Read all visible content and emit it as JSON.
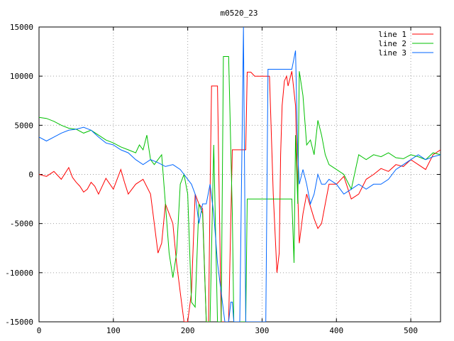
{
  "chart_data": {
    "type": "line",
    "title": "m0520_23",
    "xlabel": "",
    "ylabel": "",
    "xlim": [
      0,
      540
    ],
    "ylim": [
      -15000,
      15000
    ],
    "xticks": [
      0,
      100,
      200,
      300,
      400,
      500
    ],
    "xtick_labels": [
      "0",
      "100",
      "200",
      "300",
      "400",
      "500"
    ],
    "yticks": [
      -15000,
      -10000,
      -5000,
      0,
      5000,
      10000,
      15000
    ],
    "ytick_labels": [
      "-15000",
      "-10000",
      "-5000",
      "0",
      "5000",
      "10000",
      "15000"
    ],
    "grid": true,
    "legend_position": "top-right",
    "series": [
      {
        "name": "line 1",
        "color": "#ff0000",
        "x": [
          0,
          10,
          20,
          30,
          40,
          45,
          50,
          55,
          60,
          65,
          70,
          75,
          80,
          90,
          100,
          110,
          115,
          120,
          130,
          140,
          150,
          155,
          160,
          165,
          170,
          180,
          185,
          190,
          195,
          200,
          205,
          210,
          215,
          220,
          225,
          228,
          230,
          232,
          235,
          240,
          245,
          248,
          250,
          255,
          260,
          262,
          265,
          270,
          275,
          278,
          280,
          285,
          290,
          295,
          300,
          305,
          310,
          315,
          320,
          323,
          325,
          327,
          330,
          333,
          335,
          340,
          345,
          348,
          350,
          355,
          360,
          370,
          375,
          380,
          385,
          390,
          400,
          410,
          420,
          430,
          440,
          450,
          460,
          470,
          480,
          490,
          500,
          510,
          520,
          530,
          540
        ],
        "y": [
          0,
          -200,
          300,
          -500,
          700,
          -300,
          -800,
          -1200,
          -1800,
          -1500,
          -800,
          -1200,
          -2000,
          -400,
          -1500,
          500,
          -800,
          -2000,
          -1000,
          -500,
          -2000,
          -5000,
          -8000,
          -7000,
          -3000,
          -5000,
          -9000,
          -12000,
          -15000,
          -15000,
          -12000,
          -2000,
          -3000,
          -3500,
          -15000,
          -15000,
          -2000,
          9000,
          9000,
          9000,
          -15000,
          -15000,
          -15000,
          -15000,
          2500,
          2500,
          2500,
          2500,
          2500,
          2500,
          10400,
          10400,
          10000,
          10000,
          10000,
          10000,
          10000,
          -2000,
          -10000,
          -8000,
          2000,
          7000,
          9500,
          10000,
          9000,
          10500,
          7000,
          -2000,
          -7000,
          -4000,
          -2000,
          -4500,
          -5500,
          -5000,
          -3000,
          -1000,
          -1000,
          -200,
          -2500,
          -2000,
          -500,
          0,
          600,
          300,
          1000,
          800,
          1500,
          1000,
          500,
          2000,
          2500
        ]
      },
      {
        "name": "line 2",
        "color": "#00c000",
        "x": [
          0,
          10,
          20,
          30,
          40,
          50,
          60,
          70,
          80,
          90,
          100,
          110,
          120,
          130,
          135,
          140,
          145,
          150,
          155,
          160,
          165,
          170,
          175,
          180,
          185,
          190,
          195,
          200,
          205,
          210,
          215,
          220,
          225,
          230,
          235,
          240,
          245,
          248,
          250,
          255,
          260,
          262,
          265,
          270,
          275,
          278,
          280,
          283,
          285,
          290,
          295,
          300,
          305,
          310,
          320,
          330,
          335,
          340,
          343,
          345,
          348,
          350,
          355,
          360,
          365,
          370,
          375,
          380,
          385,
          390,
          400,
          410,
          420,
          430,
          440,
          450,
          460,
          470,
          480,
          490,
          500,
          510,
          520,
          530,
          540
        ],
        "y": [
          5800,
          5700,
          5400,
          5000,
          4700,
          4600,
          4200,
          4500,
          4000,
          3500,
          3200,
          2800,
          2500,
          2200,
          3000,
          2500,
          4000,
          1500,
          1000,
          1500,
          2000,
          -3000,
          -8000,
          -10500,
          -8000,
          -1000,
          0,
          -2000,
          -13000,
          -13500,
          -3000,
          -4000,
          -15000,
          -15000,
          3000,
          -15000,
          -15000,
          12000,
          12000,
          12000,
          -4000,
          -15000,
          -15000,
          -15000,
          -15000,
          -15000,
          -2500,
          -2500,
          -2500,
          -2500,
          -2500,
          -2500,
          -2500,
          -2500,
          -2500,
          -2500,
          -2500,
          -2500,
          -9000,
          4000,
          -3000,
          10500,
          8000,
          3000,
          3500,
          2000,
          5500,
          4000,
          2000,
          1000,
          500,
          0,
          -1500,
          2000,
          1500,
          2000,
          1800,
          2200,
          1700,
          1600,
          2000,
          1800,
          1500,
          2200,
          2000
        ]
      },
      {
        "name": "line 3",
        "color": "#0066ff",
        "x": [
          0,
          10,
          20,
          30,
          40,
          50,
          60,
          70,
          80,
          90,
          100,
          110,
          120,
          130,
          140,
          150,
          160,
          170,
          180,
          190,
          195,
          200,
          205,
          210,
          215,
          220,
          225,
          230,
          235,
          240,
          245,
          250,
          255,
          258,
          260,
          262,
          265,
          268,
          270,
          272,
          275,
          278,
          280,
          282,
          285,
          290,
          295,
          300,
          303,
          305,
          308,
          310,
          320,
          330,
          335,
          340,
          345,
          348,
          350,
          355,
          360,
          365,
          370,
          375,
          380,
          385,
          390,
          400,
          410,
          420,
          430,
          440,
          450,
          460,
          470,
          480,
          490,
          500,
          510,
          520,
          530,
          540
        ],
        "y": [
          3800,
          3400,
          3800,
          4200,
          4500,
          4600,
          4800,
          4500,
          3800,
          3200,
          3000,
          2500,
          2200,
          1500,
          1000,
          1500,
          1200,
          800,
          1000,
          500,
          0,
          -500,
          -1000,
          -2000,
          -5000,
          -3000,
          -3000,
          -1000,
          -4000,
          -9000,
          -12000,
          -15000,
          -15000,
          -13000,
          -13000,
          -15000,
          -15000,
          -15000,
          -15000,
          -3000,
          15000,
          -15000,
          -15000,
          -15000,
          -15000,
          -15000,
          -15000,
          -15000,
          -15000,
          -15000,
          10700,
          10700,
          10700,
          10700,
          10700,
          10700,
          12600,
          2000,
          -1000,
          500,
          -1000,
          -3000,
          -2000,
          0,
          -1000,
          -1000,
          -500,
          -1000,
          -2000,
          -1500,
          -1000,
          -1500,
          -1000,
          -1000,
          -500,
          500,
          1000,
          1500,
          2000,
          1500,
          1800,
          2000
        ]
      }
    ]
  }
}
